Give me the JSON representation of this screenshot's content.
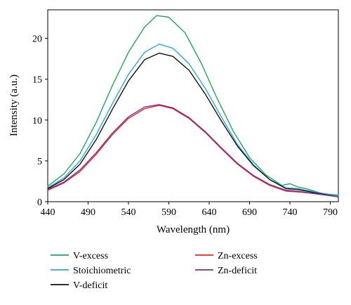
{
  "chart_data": {
    "type": "line",
    "title": "",
    "xlabel": "Wavelength (nm)",
    "ylabel": "Intensity (a.u.)",
    "xlim": [
      440,
      800
    ],
    "ylim": [
      0,
      23.5
    ],
    "xticks": [
      440,
      490,
      540,
      590,
      640,
      690,
      740,
      790
    ],
    "yticks": [
      0,
      5,
      10,
      15,
      20
    ],
    "grid": false,
    "legend_position": "below",
    "series": [
      {
        "name": "V-excess",
        "color": "#1fa85a",
        "points": [
          [
            440,
            1.9
          ],
          [
            460,
            3.4
          ],
          [
            480,
            5.9
          ],
          [
            500,
            9.7
          ],
          [
            520,
            14.2
          ],
          [
            540,
            18.3
          ],
          [
            560,
            21.4
          ],
          [
            575,
            22.8
          ],
          [
            590,
            22.6
          ],
          [
            610,
            20.7
          ],
          [
            630,
            17.0
          ],
          [
            650,
            12.6
          ],
          [
            670,
            8.6
          ],
          [
            690,
            5.4
          ],
          [
            710,
            3.3
          ],
          [
            730,
            2.0
          ],
          [
            740,
            2.2
          ],
          [
            750,
            1.8
          ],
          [
            760,
            1.6
          ],
          [
            780,
            1.0
          ],
          [
            800,
            0.8
          ]
        ]
      },
      {
        "name": "Stoichiometric",
        "color": "#29a9e1",
        "points": [
          [
            440,
            1.7
          ],
          [
            460,
            2.9
          ],
          [
            480,
            5.0
          ],
          [
            500,
            8.2
          ],
          [
            520,
            12.0
          ],
          [
            540,
            15.6
          ],
          [
            560,
            18.3
          ],
          [
            578,
            19.3
          ],
          [
            595,
            18.8
          ],
          [
            615,
            16.9
          ],
          [
            635,
            13.9
          ],
          [
            655,
            10.4
          ],
          [
            675,
            7.0
          ],
          [
            695,
            4.5
          ],
          [
            715,
            2.7
          ],
          [
            735,
            1.7
          ],
          [
            750,
            1.6
          ],
          [
            770,
            1.2
          ],
          [
            800,
            0.7
          ]
        ]
      },
      {
        "name": "V-deficit",
        "color": "#111111",
        "points": [
          [
            440,
            1.6
          ],
          [
            460,
            2.7
          ],
          [
            480,
            4.6
          ],
          [
            500,
            7.6
          ],
          [
            520,
            11.3
          ],
          [
            540,
            14.8
          ],
          [
            560,
            17.4
          ],
          [
            578,
            18.2
          ],
          [
            595,
            17.8
          ],
          [
            615,
            16.1
          ],
          [
            635,
            13.2
          ],
          [
            655,
            9.9
          ],
          [
            675,
            6.8
          ],
          [
            695,
            4.4
          ],
          [
            715,
            2.7
          ],
          [
            735,
            1.6
          ],
          [
            750,
            1.5
          ],
          [
            770,
            1.1
          ],
          [
            800,
            0.6
          ]
        ]
      },
      {
        "name": "Zn-excess",
        "color": "#e52424",
        "points": [
          [
            440,
            1.4
          ],
          [
            460,
            2.3
          ],
          [
            480,
            3.7
          ],
          [
            500,
            5.8
          ],
          [
            520,
            8.2
          ],
          [
            540,
            10.2
          ],
          [
            560,
            11.4
          ],
          [
            578,
            11.8
          ],
          [
            595,
            11.4
          ],
          [
            615,
            10.2
          ],
          [
            635,
            8.5
          ],
          [
            655,
            6.5
          ],
          [
            675,
            4.6
          ],
          [
            695,
            3.1
          ],
          [
            715,
            2.0
          ],
          [
            735,
            1.3
          ],
          [
            750,
            1.2
          ],
          [
            770,
            1.0
          ],
          [
            800,
            0.6
          ]
        ]
      },
      {
        "name": "Zn-deficit",
        "color": "#7b3294",
        "points": [
          [
            440,
            1.5
          ],
          [
            460,
            2.4
          ],
          [
            480,
            3.9
          ],
          [
            500,
            6.0
          ],
          [
            520,
            8.4
          ],
          [
            540,
            10.4
          ],
          [
            560,
            11.6
          ],
          [
            578,
            11.9
          ],
          [
            595,
            11.5
          ],
          [
            615,
            10.3
          ],
          [
            635,
            8.6
          ],
          [
            655,
            6.6
          ],
          [
            675,
            4.7
          ],
          [
            695,
            3.2
          ],
          [
            715,
            2.1
          ],
          [
            735,
            1.4
          ],
          [
            750,
            1.3
          ],
          [
            770,
            1.0
          ],
          [
            800,
            0.6
          ]
        ]
      }
    ]
  }
}
